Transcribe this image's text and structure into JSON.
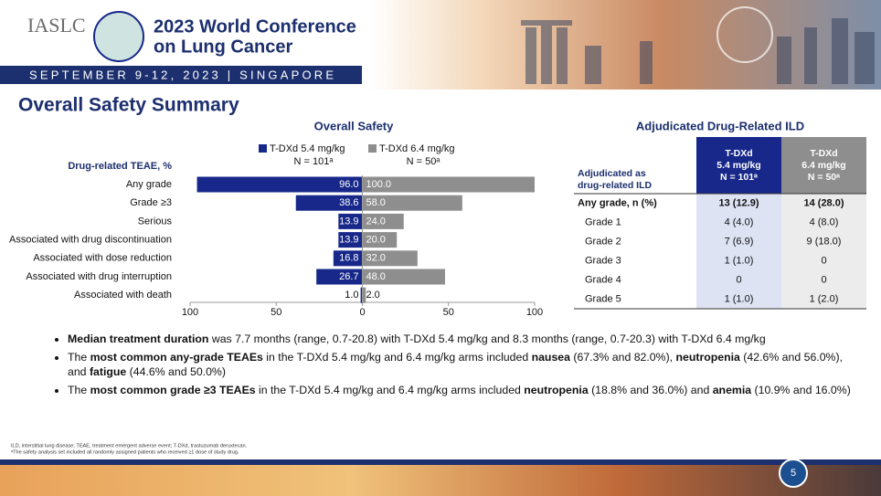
{
  "header": {
    "org": "IASLC",
    "conference_lines": [
      "2023 World Conference",
      "on Lung Cancer"
    ],
    "dates": "SEPTEMBER 9-12, 2023 | SINGAPORE"
  },
  "slide_title": "Overall Safety Summary",
  "chart_data": {
    "type": "butterfly",
    "title": "Overall Safety",
    "y_label": "Drug-related TEAE, %",
    "categories": [
      "Any grade",
      "Grade ≥3",
      "Serious",
      "Associated with drug discontinuation",
      "Associated with dose reduction",
      "Associated with drug interruption",
      "Associated with death"
    ],
    "series": [
      {
        "name": "T-DXd 5.4 mg/kg",
        "n_label": "N = 101ᵃ",
        "color": "#17288a",
        "side": "left",
        "values": [
          96.0,
          38.6,
          13.9,
          13.9,
          16.8,
          26.7,
          1.0
        ],
        "value_labels": [
          "96.0",
          "38.6",
          "13.9",
          "13.9",
          "16.8",
          "26.7",
          "1.0"
        ]
      },
      {
        "name": "T-DXd 6.4 mg/kg",
        "n_label": "N = 50ᵃ",
        "color": "#8e8e8e",
        "side": "right",
        "values": [
          100.0,
          58.0,
          24.0,
          20.0,
          32.0,
          48.0,
          2.0
        ],
        "value_labels": [
          "100.0",
          "58.0",
          "24.0",
          "20.0",
          "32.0",
          "48.0",
          "2.0"
        ]
      }
    ],
    "xlim": [
      -100,
      100
    ],
    "xticks": [
      {
        "value": -100,
        "label": "100"
      },
      {
        "value": -50,
        "label": "50"
      },
      0,
      50,
      100
    ]
  },
  "table": {
    "title": "Adjudicated Drug-Related ILD",
    "header": [
      "Adjudicated as drug-related ILD",
      "T-DXd 5.4 mg/kg N = 101ᵃ",
      "T-DXd 6.4 mg/kg N = 50ᵃ"
    ],
    "rows": [
      [
        "Any grade, n (%)",
        "13 (12.9)",
        "14 (28.0)"
      ],
      [
        "Grade 1",
        "4 (4.0)",
        "4 (8.0)"
      ],
      [
        "Grade 2",
        "7 (6.9)",
        "9 (18.0)"
      ],
      [
        "Grade 3",
        "1 (1.0)",
        "0"
      ],
      [
        "Grade 4",
        "0",
        "0"
      ],
      [
        "Grade 5",
        "1 (1.0)",
        "1 (2.0)"
      ]
    ]
  },
  "bullets": [
    [
      {
        "text": "Median treatment duration",
        "bold": true
      },
      {
        "text": " was 7.7 months (range, 0.7-20.8) with T-DXd 5.4 mg/kg and 8.3 months (range, 0.7-20.3) with T-DXd 6.4 mg/kg",
        "bold": false
      }
    ],
    [
      {
        "text": "The ",
        "bold": false
      },
      {
        "text": "most common any-grade TEAEs",
        "bold": true
      },
      {
        "text": " in the T-DXd 5.4 mg/kg and 6.4 mg/kg arms included ",
        "bold": false
      },
      {
        "text": "nausea",
        "bold": true
      },
      {
        "text": " (67.3% and 82.0%), ",
        "bold": false
      },
      {
        "text": "neutropenia",
        "bold": true
      },
      {
        "text": " (42.6% and 56.0%), and ",
        "bold": false
      },
      {
        "text": "fatigue",
        "bold": true
      },
      {
        "text": " (44.6% and 50.0%)",
        "bold": false
      }
    ],
    [
      {
        "text": "The ",
        "bold": false
      },
      {
        "text": "most common grade ≥3 TEAEs",
        "bold": true
      },
      {
        "text": " in the T-DXd 5.4 mg/kg and 6.4 mg/kg arms included ",
        "bold": false
      },
      {
        "text": "neutropenia",
        "bold": true
      },
      {
        "text": " (18.8% and 36.0%) and ",
        "bold": false
      },
      {
        "text": "anemia",
        "bold": true
      },
      {
        "text": " (10.9% and 16.0%)",
        "bold": false
      }
    ]
  ],
  "footnotes": [
    "ILD, interstitial lung disease; TEAE, treatment emergent adverse event; T-DXd, trastuzumab deruxtecan.",
    "ᵃThe safety analysis set included all randomly assigned patients who received ≥1 dose of study drug."
  ],
  "page_number": "5"
}
